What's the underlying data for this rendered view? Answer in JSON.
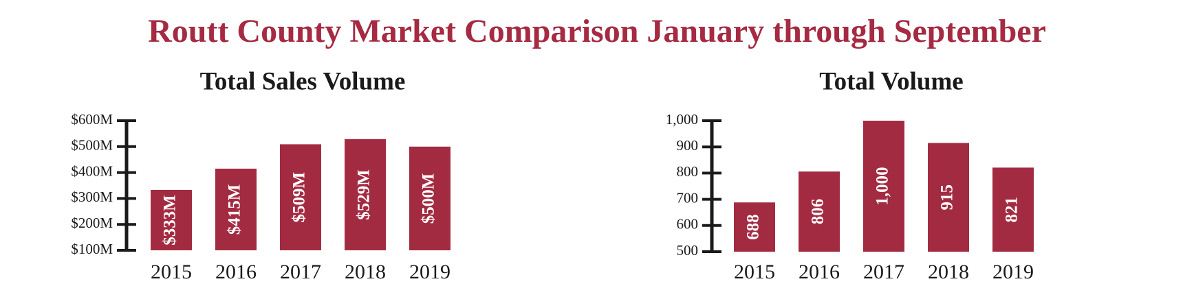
{
  "title": "Routt County Market Comparison January through September",
  "chart_data": [
    {
      "type": "bar",
      "title": "Total Sales Volume",
      "categories": [
        "2015",
        "2016",
        "2017",
        "2018",
        "2019"
      ],
      "values": [
        333,
        415,
        509,
        529,
        500
      ],
      "value_labels": [
        "$333M",
        "$415M",
        "$509M",
        "$529M",
        "$500M"
      ],
      "color": "#a32b41",
      "ylim": [
        100,
        600
      ],
      "yticks": [
        {
          "value": 100,
          "label": "$100M"
        },
        {
          "value": 200,
          "label": "$200M"
        },
        {
          "value": 300,
          "label": "$300M"
        },
        {
          "value": 400,
          "label": "$400M"
        },
        {
          "value": 500,
          "label": "$500M"
        },
        {
          "value": 600,
          "label": "$600M"
        }
      ]
    },
    {
      "type": "bar",
      "title": "Total Volume",
      "categories": [
        "2015",
        "2016",
        "2017",
        "2018",
        "2019"
      ],
      "values": [
        688,
        806,
        1000,
        915,
        821
      ],
      "value_labels": [
        "688",
        "806",
        "1,000",
        "915",
        "821"
      ],
      "color": "#a32b41",
      "ylim": [
        500,
        1000
      ],
      "yticks": [
        500,
        600,
        700,
        800,
        900,
        {
          "value": 1000,
          "label": "1,000"
        }
      ]
    }
  ]
}
